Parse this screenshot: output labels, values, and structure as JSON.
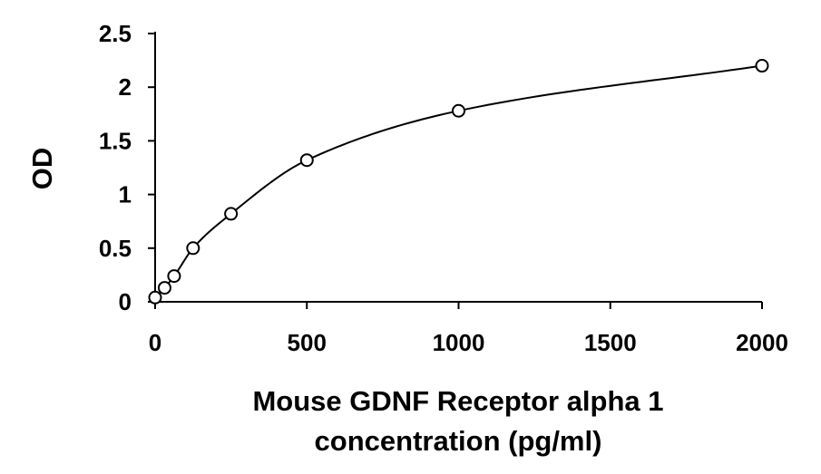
{
  "chart_data": {
    "type": "scatter",
    "xlabel": [
      "Mouse GDNF Receptor alpha 1",
      "concentration (pg/ml)"
    ],
    "ylabel": "OD",
    "xlim": [
      0,
      2000
    ],
    "ylim": [
      0,
      2.5
    ],
    "x_ticks": [
      0,
      500,
      1000,
      1500,
      2000
    ],
    "y_ticks": [
      0,
      0.5,
      1,
      1.5,
      2,
      2.5
    ],
    "x_tick_labels": [
      "0",
      "500",
      "1000",
      "1500",
      "2000"
    ],
    "y_tick_labels": [
      "0",
      "0.5",
      "1",
      "1.5",
      "2",
      "2.5"
    ],
    "grid": false,
    "series": [
      {
        "marker": "open-circle",
        "line": "smooth-fit",
        "x": [
          0,
          31.25,
          62.5,
          125,
          250,
          500,
          1000,
          2000
        ],
        "y": [
          0.04,
          0.13,
          0.24,
          0.5,
          0.82,
          1.32,
          1.78,
          2.2
        ]
      }
    ],
    "colors": {
      "axis": "#000000",
      "marker": "#000000",
      "curve": "#000000"
    }
  }
}
